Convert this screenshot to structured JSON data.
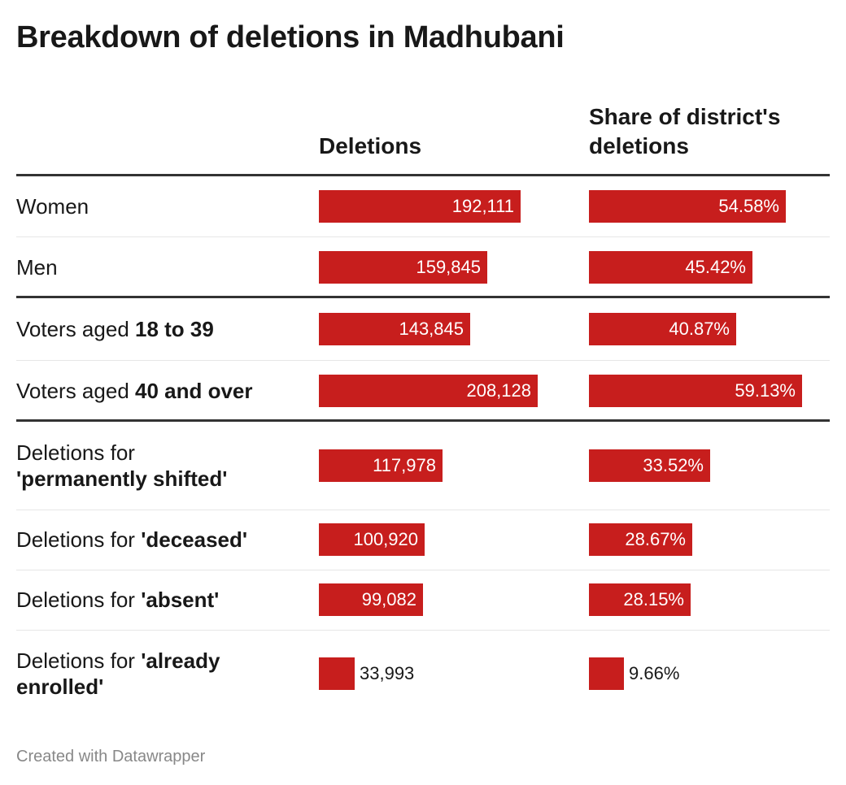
{
  "title": "Breakdown of deletions in Madhubani",
  "columns": {
    "deletions": "Deletions",
    "share": "Share of district's deletions"
  },
  "chart_data": {
    "type": "bar",
    "title": "Breakdown of deletions in Madhubani",
    "series": [
      {
        "name": "Deletions",
        "values": [
          192111,
          159845,
          143845,
          208128,
          117978,
          100920,
          99082,
          33993
        ]
      },
      {
        "name": "Share of district's deletions",
        "values": [
          54.58,
          45.42,
          40.87,
          59.13,
          33.52,
          28.67,
          28.15,
          9.66
        ]
      }
    ],
    "rows": [
      {
        "label_plain": "Women",
        "label_bold": "",
        "label_suffix": "",
        "deletions": 192111,
        "deletions_label": "192,111",
        "share": 54.58,
        "share_label": "54.58%"
      },
      {
        "label_plain": "Men",
        "label_bold": "",
        "label_suffix": "",
        "deletions": 159845,
        "deletions_label": "159,845",
        "share": 45.42,
        "share_label": "45.42%"
      },
      {
        "label_plain": "Voters aged ",
        "label_bold": "18 to 39",
        "label_suffix": "",
        "deletions": 143845,
        "deletions_label": "143,845",
        "share": 40.87,
        "share_label": "40.87%"
      },
      {
        "label_plain": "Voters aged ",
        "label_bold": "40 and over",
        "label_suffix": "",
        "deletions": 208128,
        "deletions_label": "208,128",
        "share": 59.13,
        "share_label": "59.13%"
      },
      {
        "label_plain": "Deletions for ",
        "label_bold": "'permanently shifted'",
        "label_suffix": "",
        "deletions": 117978,
        "deletions_label": "117,978",
        "share": 33.52,
        "share_label": "33.52%"
      },
      {
        "label_plain": "Deletions for ",
        "label_bold": "'deceased'",
        "label_suffix": "",
        "deletions": 100920,
        "deletions_label": "100,920",
        "share": 28.67,
        "share_label": "28.67%"
      },
      {
        "label_plain": "Deletions for ",
        "label_bold": "'absent'",
        "label_suffix": "",
        "deletions": 99082,
        "deletions_label": "99,082",
        "share": 28.15,
        "share_label": "28.15%"
      },
      {
        "label_plain": "Deletions for ",
        "label_bold": "'already enrolled'",
        "label_suffix": "",
        "deletions": 33993,
        "deletions_label": "33,993",
        "share": 9.66,
        "share_label": "9.66%"
      }
    ],
    "deletions_max": 208128,
    "share_max": 59.13,
    "bar_color": "#c71e1d",
    "grid": false,
    "legend": "none"
  },
  "footer": "Created with Datawrapper"
}
